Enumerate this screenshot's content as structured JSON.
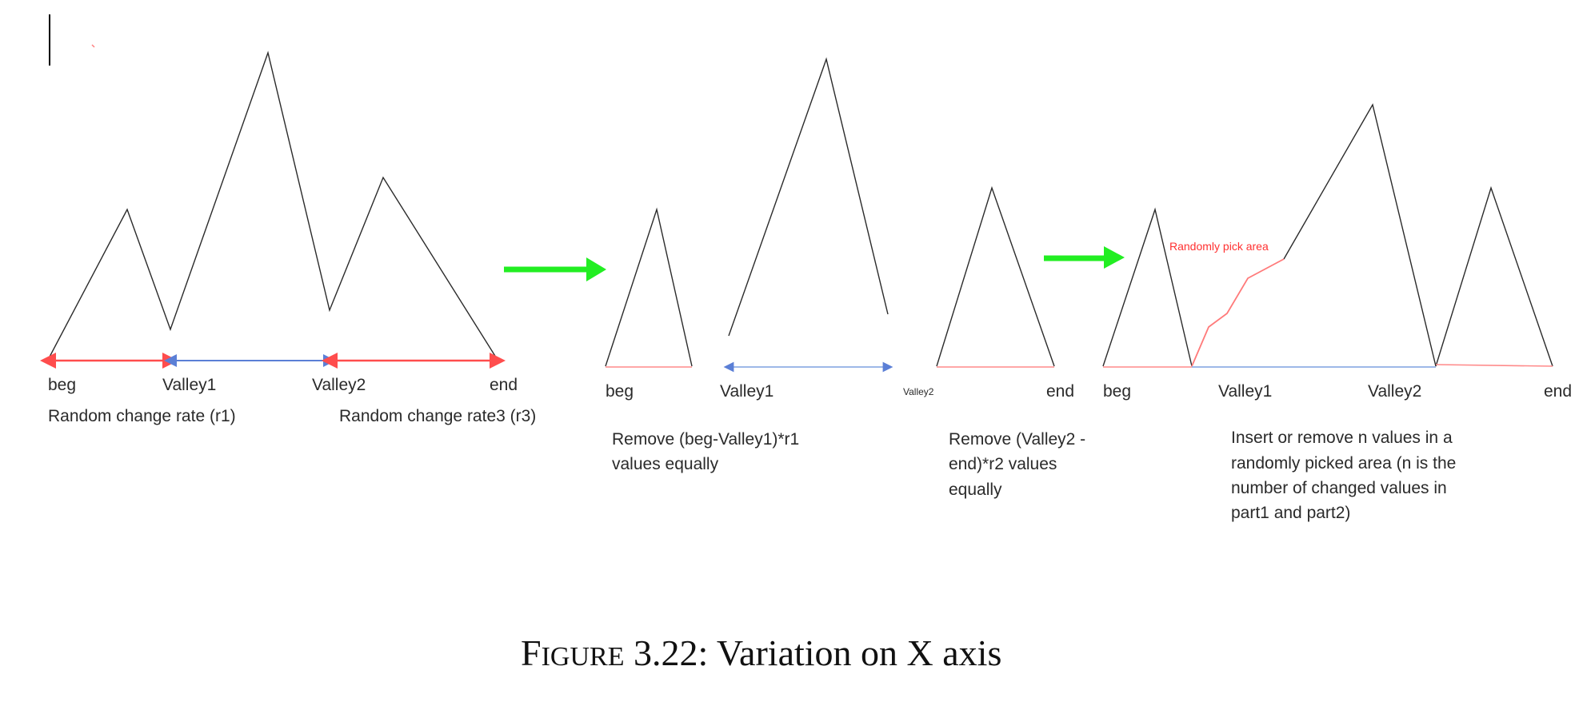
{
  "panel1": {
    "labels": {
      "beg": "beg",
      "valley1": "Valley1",
      "valley2": "Valley2",
      "end": "end"
    },
    "rate_r1": "Random change rate (r1)",
    "rate_r3": "Random change rate3 (r3)"
  },
  "panel2": {
    "labels": {
      "beg": "beg",
      "valley1": "Valley1",
      "valley2": "Valley2",
      "end": "end"
    },
    "note_left": [
      "Remove  (beg-Valley1)*r1",
      "values equally"
    ],
    "note_right": [
      "Remove (Valley2 -",
      "end)*r2 values",
      "equally"
    ]
  },
  "panel3": {
    "labels": {
      "beg": "beg",
      "valley1": "Valley1",
      "valley2": "Valley2",
      "end": "end"
    },
    "pick_area_label": "Randomly pick area",
    "note": [
      "Insert or remove n values in a",
      "randomly picked area (n is the",
      "number of changed values in",
      "part1 and part2)"
    ]
  },
  "caption": {
    "prefix": "F",
    "smallcaps": "IGURE",
    "rest": " 3.22: Variation on X axis"
  },
  "colors": {
    "arrow": "#22ee22",
    "red": "#ff4d4d",
    "blue": "#5b7fd6"
  }
}
